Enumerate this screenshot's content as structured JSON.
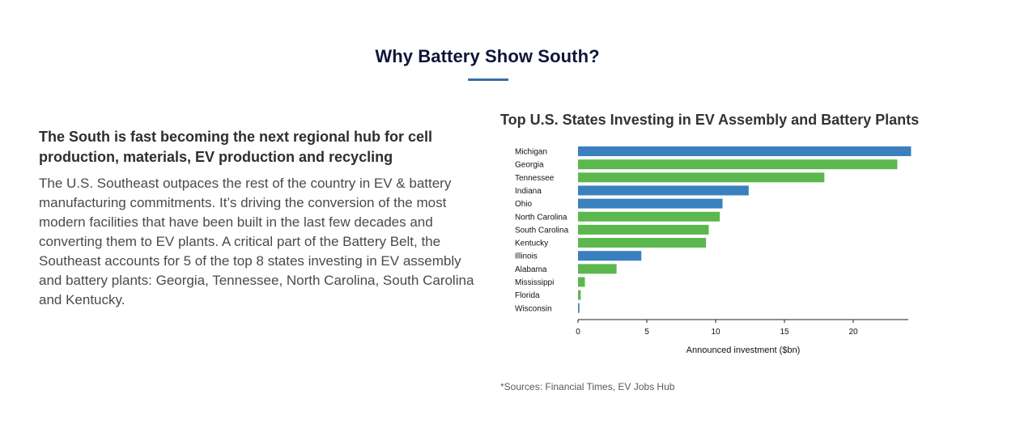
{
  "section": {
    "title": "Why Battery Show South?"
  },
  "left": {
    "lead": "The South is fast becoming the next regional hub for cell production, materials, EV production and recycling",
    "body": "The U.S. Southeast outpaces the rest of the country in EV & battery manufacturing commitments. It’s driving the conversion of the most modern facilities that have been built in the last few decades and converting them to EV plants. A critical part of the Battery Belt, the Southeast accounts for 5 of the top 8 states investing in EV assembly and battery plants: Georgia, Tennessee, North Carolina, South Carolina and Kentucky."
  },
  "chart_data": {
    "type": "bar",
    "orientation": "horizontal",
    "title": "Top U.S. States Investing in EV Assembly and Battery Plants",
    "xlabel": "Announced investment ($bn)",
    "ylabel": "",
    "xlim": [
      0,
      24
    ],
    "xticks": [
      0,
      5,
      10,
      15,
      20
    ],
    "grid": false,
    "categories": [
      "Michigan",
      "Georgia",
      "Tennessee",
      "Indiana",
      "Ohio",
      "North Carolina",
      "South Carolina",
      "Kentucky",
      "Illinois",
      "Alabama",
      "Mississippi",
      "Florida",
      "Wisconsin"
    ],
    "values": [
      24.2,
      23.2,
      17.9,
      12.4,
      10.5,
      10.3,
      9.5,
      9.3,
      4.6,
      2.8,
      0.5,
      0.2,
      0.1
    ],
    "colors": [
      "#3a80bf",
      "#5cb84e",
      "#5cb84e",
      "#3a80bf",
      "#3a80bf",
      "#5cb84e",
      "#5cb84e",
      "#5cb84e",
      "#3a80bf",
      "#5cb84e",
      "#5cb84e",
      "#5cb84e",
      "#3a80bf"
    ]
  },
  "footer": {
    "sources": "*Sources: Financial Times, EV Jobs Hub"
  }
}
